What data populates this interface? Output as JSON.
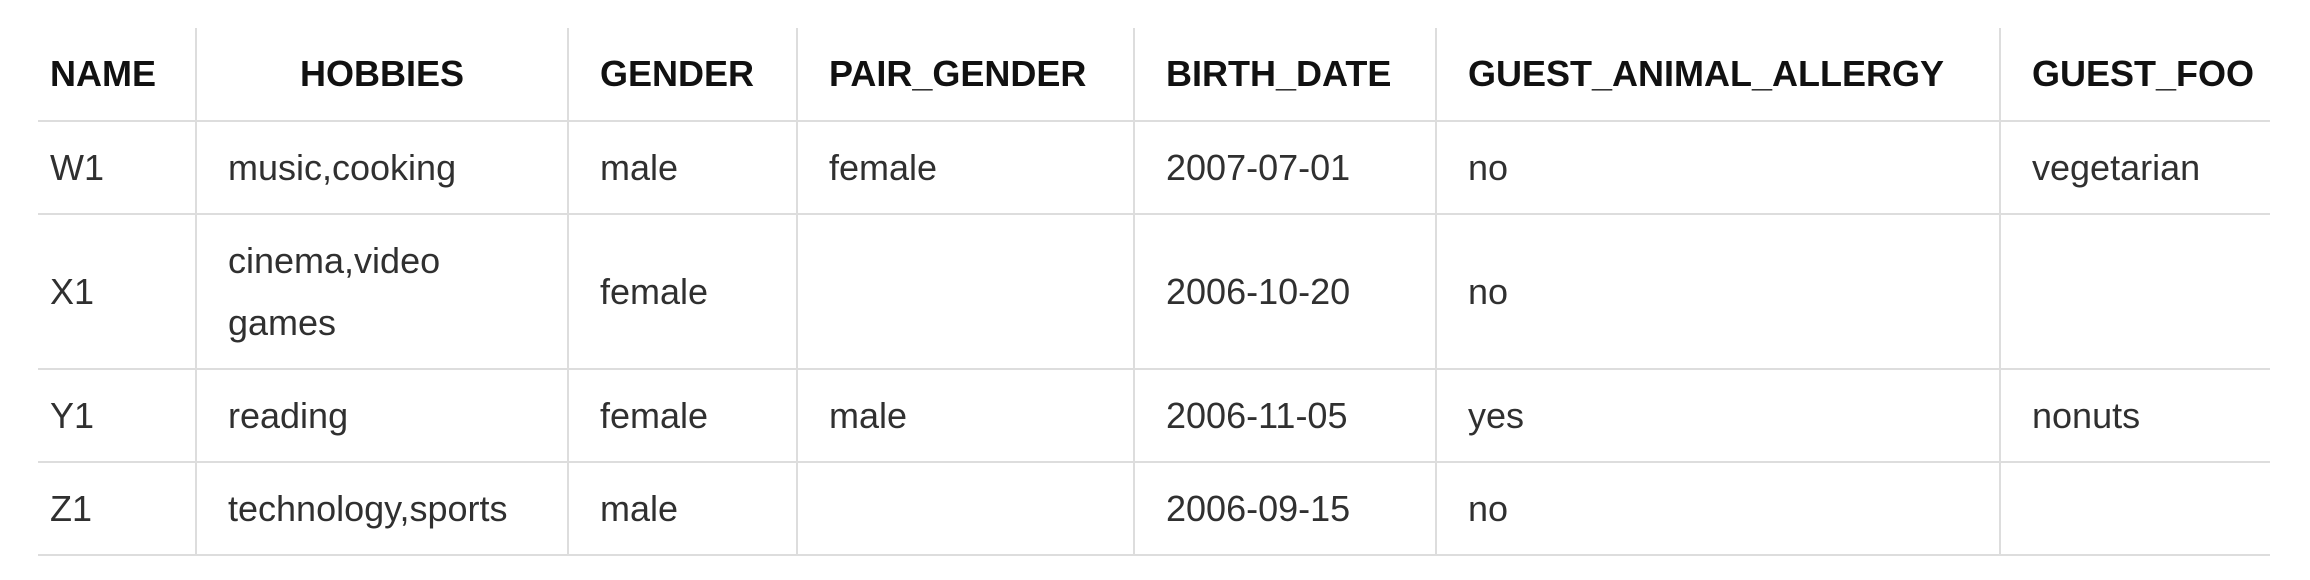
{
  "table": {
    "headers": [
      "NAME",
      "HOBBIES",
      "GENDER",
      "PAIR_GENDER",
      "BIRTH_DATE",
      "GUEST_ANIMAL_ALLERGY",
      "GUEST_FOO"
    ],
    "rows": [
      [
        "W1",
        "music,cooking",
        "male",
        "female",
        "2007-07-01",
        "no",
        "vegetarian"
      ],
      [
        "X1",
        "cinema,video games",
        "female",
        "",
        "2006-10-20",
        "no",
        ""
      ],
      [
        "Y1",
        "reading",
        "female",
        "male",
        "2006-11-05",
        "yes",
        "nonuts"
      ],
      [
        "Z1",
        "technology,sports",
        "male",
        "",
        "2006-09-15",
        "no",
        ""
      ]
    ]
  }
}
